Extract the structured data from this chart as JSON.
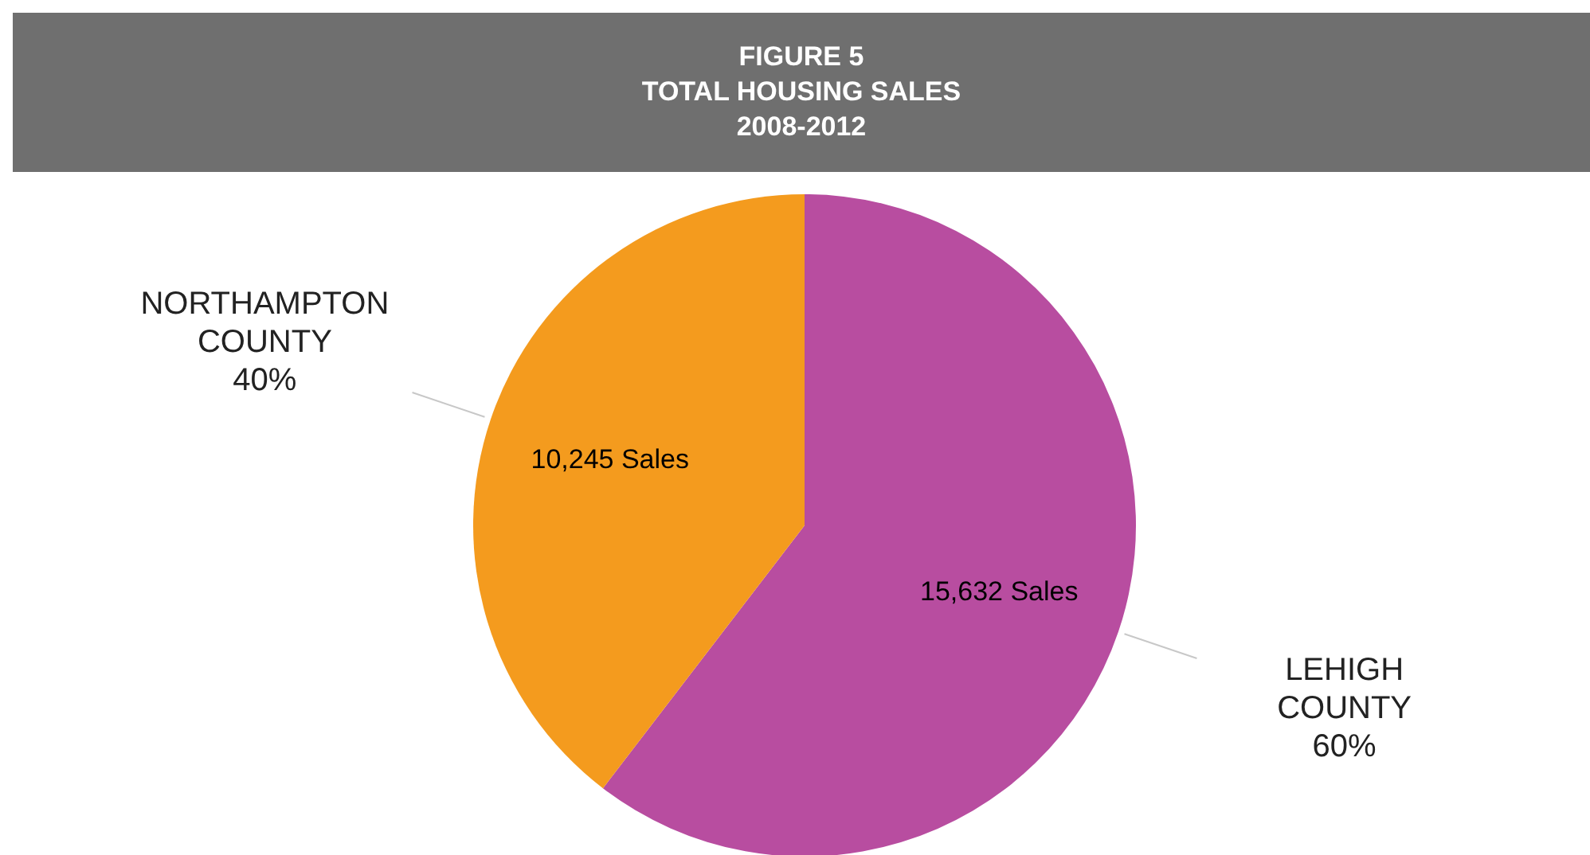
{
  "chart_data": {
    "type": "pie",
    "title": "FIGURE 5\nTOTAL HOUSING SALES\n2008-2012",
    "categories": [
      "LEHIGH COUNTY",
      "NORTHAMPTON COUNTY"
    ],
    "values": [
      15632,
      10245
    ],
    "colors": [
      "#b84da0",
      "#f49b1e"
    ],
    "value_labels": [
      "15,632 Sales",
      "10,245 Sales"
    ],
    "annotations": [
      "60%",
      "40%"
    ],
    "legend": false
  }
}
